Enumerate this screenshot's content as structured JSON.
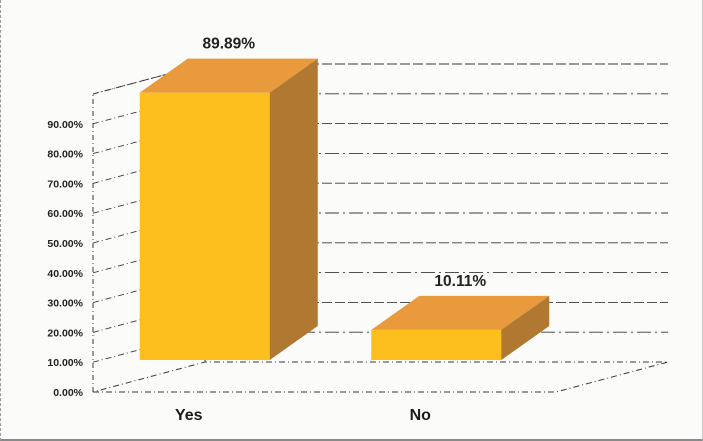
{
  "chart_data": {
    "type": "bar",
    "style": "3d-column",
    "categories": [
      "Yes",
      "No"
    ],
    "values": [
      89.89,
      10.11
    ],
    "data_labels": [
      "89.89%",
      "10.11%"
    ],
    "y_tick_labels": [
      "0.00%",
      "10.00%",
      "20.00%",
      "30.00%",
      "40.00%",
      "50.00%",
      "60.00%",
      "70.00%",
      "80.00%",
      "90.00%"
    ],
    "ylim": [
      0,
      100
    ],
    "grid": true,
    "legend": "none",
    "colors": {
      "bar_front": "#fcbf1e",
      "bar_top": "#e89a3c",
      "bar_side": "#b07830",
      "grid": "#3a3a3a"
    }
  }
}
